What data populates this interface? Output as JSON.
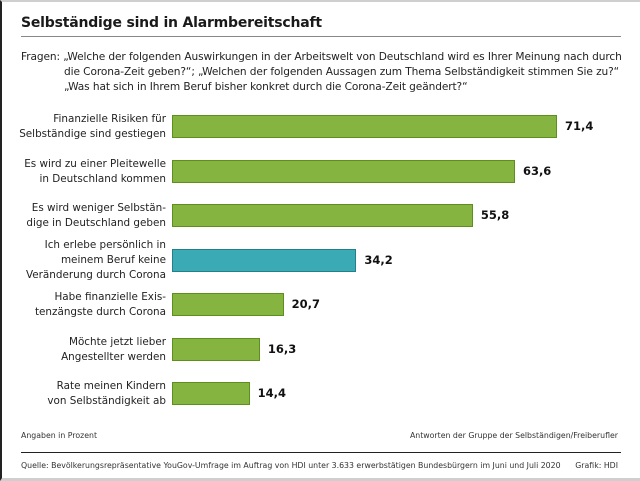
{
  "title": "Selbständige sind in Alarmbereitschaft",
  "questions": {
    "line1": "Fragen: „Welche der folgenden Auswirkungen in der Arbeitswelt von Deutschland wird es Ihrer Meinung nach durch",
    "line2": "die Corona-Zeit geben?“; „Welchen der folgenden Aussagen zum Thema Selbständigkeit stimmen Sie zu?“",
    "line3": "„Was hat sich in Ihrem Beruf bisher konkret durch die Corona-Zeit geändert?“"
  },
  "colors": {
    "green": "#86b440",
    "green_border": "#5e8f1e",
    "teal": "#3aabb5",
    "teal_border": "#237f89"
  },
  "chart_data": {
    "type": "bar",
    "orientation": "horizontal",
    "title": "Selbständige sind in Alarmbereitschaft",
    "unit": "Prozent",
    "xlim": [
      0,
      75
    ],
    "grid": false,
    "categories": [
      [
        "Finanzielle Risiken für",
        "Selbständige sind gestiegen"
      ],
      [
        "Es wird zu einer Pleitewelle",
        "in Deutschland kommen"
      ],
      [
        "Es wird weniger Selbstän-",
        "dige in Deutschland geben"
      ],
      [
        "Ich erlebe persönlich in",
        "meinem Beruf keine",
        "Veränderung durch Corona"
      ],
      [
        "Habe finanzielle Exis-",
        "tenzängste durch Corona"
      ],
      [
        "Möchte jetzt lieber",
        "Angestellter werden"
      ],
      [
        "Rate meinen Kindern",
        "von Selbständigkeit ab"
      ]
    ],
    "values": [
      71.4,
      63.6,
      55.8,
      34.2,
      20.7,
      16.3,
      14.4
    ],
    "value_labels": [
      "71,4",
      "63,6",
      "55,8",
      "34,2",
      "20,7",
      "16,3",
      "14,4"
    ],
    "highlight": [
      false,
      false,
      false,
      true,
      false,
      false,
      false
    ]
  },
  "footer": {
    "unit_note": "Angaben in Prozent",
    "group_note": "Antworten der Gruppe der Selbständigen/Freiberufler",
    "source": "Quelle: Bevölkerungsrepräsentative YouGov-Umfrage im Auftrag von HDI unter 3.633 erwerbstätigen Bundesbürgern im Juni und Juli 2020",
    "credit": "Grafik: HDI"
  }
}
